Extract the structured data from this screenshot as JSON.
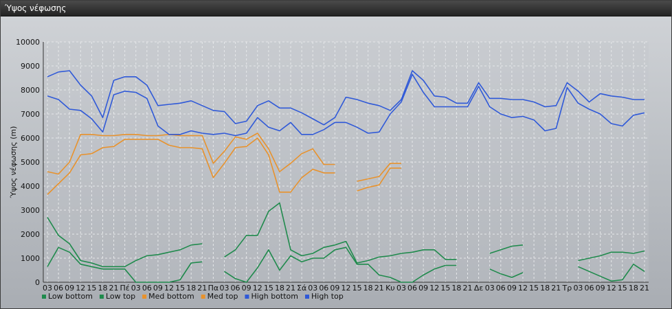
{
  "window": {
    "title": "Ύψος νέφωσης"
  },
  "chart_data": {
    "type": "line",
    "title": "",
    "xlabel": "",
    "ylabel": "Ύψος νέφωσης (m)",
    "ylim": [
      0,
      10000
    ],
    "yticks": [
      0,
      1000,
      2000,
      3000,
      4000,
      5000,
      6000,
      7000,
      8000,
      9000,
      10000
    ],
    "grid": true,
    "legend_position": "bottom-left",
    "x": [
      "03",
      "06",
      "09",
      "12",
      "15",
      "18",
      "21",
      "Πέ",
      "03",
      "06",
      "09",
      "12",
      "15",
      "18",
      "21",
      "Πα",
      "03",
      "06",
      "09",
      "12",
      "15",
      "18",
      "21",
      "Σά",
      "03",
      "06",
      "09",
      "12",
      "15",
      "18",
      "21",
      "Κυ",
      "03",
      "06",
      "09",
      "12",
      "15",
      "18",
      "21",
      "Δε",
      "03",
      "06",
      "09",
      "12",
      "15",
      "18",
      "21",
      "Τρ",
      "03",
      "06",
      "09",
      "12",
      "15",
      "18",
      "21"
    ],
    "series": [
      {
        "name": "Low bottom",
        "color": "#1f8a4c",
        "values": [
          650,
          1450,
          1250,
          750,
          650,
          550,
          550,
          550,
          0,
          0,
          0,
          0,
          100,
          800,
          850,
          null,
          450,
          150,
          0,
          600,
          1350,
          500,
          1100,
          850,
          1000,
          1000,
          1350,
          1450,
          750,
          750,
          300,
          200,
          0,
          0,
          300,
          550,
          700,
          700,
          null,
          null,
          550,
          350,
          200,
          400,
          null,
          null,
          null,
          null,
          650,
          450,
          250,
          50,
          100,
          750,
          450
        ]
      },
      {
        "name": "Low top",
        "color": "#1f8a4c",
        "values": [
          2700,
          1950,
          1600,
          900,
          800,
          650,
          650,
          650,
          900,
          1100,
          1150,
          1250,
          1350,
          1550,
          1600,
          null,
          1050,
          1350,
          1950,
          1950,
          2950,
          3300,
          1350,
          1100,
          1200,
          1450,
          1550,
          1700,
          800,
          900,
          1050,
          1100,
          1200,
          1250,
          1350,
          1350,
          950,
          950,
          null,
          null,
          1200,
          1350,
          1500,
          1550,
          null,
          null,
          null,
          null,
          900,
          1000,
          1100,
          1250,
          1250,
          1200,
          1300
        ]
      },
      {
        "name": "Med bottom",
        "color": "#e8922c",
        "values": [
          3650,
          4100,
          4550,
          5300,
          5350,
          5600,
          5650,
          5950,
          5950,
          5950,
          5950,
          5700,
          5600,
          5600,
          5550,
          4350,
          4950,
          5600,
          5650,
          6000,
          5300,
          3750,
          3750,
          4350,
          4700,
          4550,
          4550,
          null,
          3800,
          3950,
          4050,
          4750,
          4750,
          null,
          null,
          null,
          null,
          null,
          null,
          null,
          null,
          null,
          null,
          null,
          null,
          null,
          null,
          null,
          null,
          null,
          null,
          null,
          null,
          null,
          null
        ]
      },
      {
        "name": "Med top",
        "color": "#e8922c",
        "values": [
          4600,
          4500,
          5000,
          6150,
          6150,
          6100,
          6100,
          6150,
          6150,
          6100,
          6100,
          6150,
          6100,
          6100,
          6100,
          4950,
          5450,
          6050,
          5950,
          6200,
          5550,
          4600,
          4950,
          5350,
          5550,
          4900,
          4900,
          null,
          4200,
          4300,
          4400,
          4950,
          4950,
          null,
          null,
          null,
          null,
          null,
          null,
          null,
          null,
          null,
          null,
          null,
          null,
          null,
          null,
          null,
          null,
          null,
          null,
          null,
          null,
          null,
          null
        ]
      },
      {
        "name": "High bottom",
        "color": "#2f59d8",
        "values": [
          7750,
          7600,
          7200,
          7150,
          6800,
          6250,
          7800,
          7950,
          7900,
          7650,
          6500,
          6150,
          6150,
          6300,
          6200,
          6150,
          6200,
          6100,
          6200,
          6850,
          6450,
          6300,
          6650,
          6150,
          6150,
          6350,
          6650,
          6650,
          6450,
          6200,
          6250,
          7000,
          7500,
          8650,
          7900,
          7300,
          7300,
          7300,
          7300,
          8150,
          7300,
          7000,
          6850,
          6900,
          6750,
          6300,
          6400,
          8100,
          7450,
          7200,
          7000,
          6600,
          6500,
          6950,
          7050
        ]
      },
      {
        "name": "High top",
        "color": "#2f59d8",
        "values": [
          8550,
          8750,
          8800,
          8200,
          7750,
          6850,
          8400,
          8550,
          8550,
          8200,
          7350,
          7400,
          7450,
          7550,
          7350,
          7150,
          7100,
          6600,
          6700,
          7350,
          7550,
          7250,
          7250,
          7050,
          6800,
          6550,
          6850,
          7700,
          7600,
          7450,
          7350,
          7150,
          7600,
          8800,
          8400,
          7750,
          7700,
          7450,
          7450,
          8300,
          7650,
          7650,
          7600,
          7600,
          7500,
          7300,
          7350,
          8300,
          7950,
          7500,
          7850,
          7750,
          7700,
          7600,
          7600
        ]
      }
    ]
  }
}
